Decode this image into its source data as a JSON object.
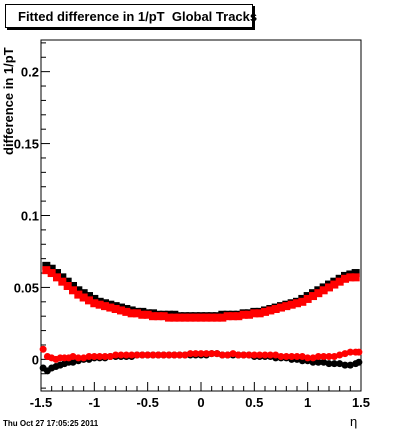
{
  "chart_data": {
    "type": "scatter",
    "title": "Fitted difference in 1/pT  Global Tracks",
    "xlabel": "η",
    "ylabel": "difference in 1/pT",
    "xlim": [
      -1.5,
      1.5
    ],
    "ylim": [
      -0.022,
      0.222
    ],
    "x_ticks": [
      "-1.5",
      "-1",
      "-0.5",
      "0",
      "0.5",
      "1",
      "1.5"
    ],
    "y_ticks": [
      "0",
      "0.05",
      "0.1",
      "0.15",
      "0.2"
    ],
    "grid": false,
    "series": [
      {
        "color": "#000000",
        "marker": "square",
        "x": [
          -1.45,
          -1.4,
          -1.35,
          -1.3,
          -1.25,
          -1.2,
          -1.15,
          -1.1,
          -1.05,
          -1.0,
          -0.95,
          -0.9,
          -0.85,
          -0.8,
          -0.75,
          -0.7,
          -0.65,
          -0.6,
          -0.55,
          -0.5,
          -0.45,
          -0.4,
          -0.35,
          -0.3,
          -0.25,
          -0.2,
          -0.15,
          -0.1,
          -0.05,
          0.0,
          0.05,
          0.1,
          0.15,
          0.2,
          0.25,
          0.3,
          0.35,
          0.4,
          0.45,
          0.5,
          0.55,
          0.6,
          0.65,
          0.7,
          0.75,
          0.8,
          0.85,
          0.9,
          0.95,
          1.0,
          1.05,
          1.1,
          1.15,
          1.2,
          1.25,
          1.3,
          1.35,
          1.4,
          1.45
        ],
        "y": [
          0.065,
          0.063,
          0.06,
          0.057,
          0.054,
          0.051,
          0.048,
          0.046,
          0.044,
          0.042,
          0.04,
          0.039,
          0.038,
          0.037,
          0.036,
          0.035,
          0.034,
          0.033,
          0.033,
          0.032,
          0.032,
          0.031,
          0.031,
          0.031,
          0.031,
          0.03,
          0.03,
          0.03,
          0.03,
          0.03,
          0.03,
          0.03,
          0.03,
          0.031,
          0.031,
          0.031,
          0.031,
          0.032,
          0.032,
          0.033,
          0.033,
          0.034,
          0.035,
          0.036,
          0.037,
          0.038,
          0.039,
          0.04,
          0.042,
          0.044,
          0.046,
          0.048,
          0.05,
          0.052,
          0.054,
          0.056,
          0.058,
          0.059,
          0.06
        ]
      },
      {
        "color": "#ff0000",
        "marker": "square",
        "x": [
          -1.45,
          -1.4,
          -1.35,
          -1.3,
          -1.25,
          -1.2,
          -1.15,
          -1.1,
          -1.05,
          -1.0,
          -0.95,
          -0.9,
          -0.85,
          -0.8,
          -0.75,
          -0.7,
          -0.65,
          -0.6,
          -0.55,
          -0.5,
          -0.45,
          -0.4,
          -0.35,
          -0.3,
          -0.25,
          -0.2,
          -0.15,
          -0.1,
          -0.05,
          0.0,
          0.05,
          0.1,
          0.15,
          0.2,
          0.25,
          0.3,
          0.35,
          0.4,
          0.45,
          0.5,
          0.55,
          0.6,
          0.65,
          0.7,
          0.75,
          0.8,
          0.85,
          0.9,
          0.95,
          1.0,
          1.05,
          1.1,
          1.15,
          1.2,
          1.25,
          1.3,
          1.35,
          1.4,
          1.45
        ],
        "y": [
          0.062,
          0.06,
          0.057,
          0.054,
          0.051,
          0.048,
          0.045,
          0.043,
          0.041,
          0.039,
          0.038,
          0.037,
          0.036,
          0.035,
          0.034,
          0.033,
          0.032,
          0.032,
          0.031,
          0.031,
          0.03,
          0.03,
          0.03,
          0.029,
          0.029,
          0.029,
          0.029,
          0.029,
          0.029,
          0.029,
          0.029,
          0.029,
          0.029,
          0.029,
          0.03,
          0.03,
          0.03,
          0.031,
          0.031,
          0.032,
          0.032,
          0.033,
          0.034,
          0.035,
          0.036,
          0.037,
          0.038,
          0.039,
          0.04,
          0.042,
          0.044,
          0.046,
          0.048,
          0.05,
          0.052,
          0.054,
          0.056,
          0.057,
          0.057
        ]
      },
      {
        "color": "#000000",
        "marker": "circle",
        "x": [
          -1.48,
          -1.44,
          -1.4,
          -1.36,
          -1.32,
          -1.28,
          -1.24,
          -1.2,
          -1.15,
          -1.1,
          -1.05,
          -1.0,
          -0.95,
          -0.9,
          -0.85,
          -0.8,
          -0.75,
          -0.7,
          -0.65,
          -0.6,
          -0.55,
          -0.5,
          -0.45,
          -0.4,
          -0.35,
          -0.3,
          -0.25,
          -0.2,
          -0.15,
          -0.1,
          -0.05,
          0.0,
          0.05,
          0.1,
          0.15,
          0.2,
          0.25,
          0.3,
          0.35,
          0.4,
          0.45,
          0.5,
          0.55,
          0.6,
          0.65,
          0.7,
          0.75,
          0.8,
          0.85,
          0.9,
          0.95,
          1.0,
          1.05,
          1.1,
          1.15,
          1.2,
          1.25,
          1.3,
          1.35,
          1.4,
          1.45,
          1.48
        ],
        "y": [
          -0.006,
          -0.008,
          -0.006,
          -0.005,
          -0.004,
          -0.003,
          -0.002,
          -0.002,
          -0.001,
          0.0,
          0.0,
          0.001,
          0.001,
          0.001,
          0.002,
          0.002,
          0.002,
          0.002,
          0.002,
          0.003,
          0.003,
          0.003,
          0.003,
          0.003,
          0.003,
          0.003,
          0.003,
          0.003,
          0.003,
          0.003,
          0.003,
          0.003,
          0.003,
          0.004,
          0.004,
          0.003,
          0.003,
          0.003,
          0.003,
          0.003,
          0.003,
          0.002,
          0.002,
          0.002,
          0.002,
          0.001,
          0.001,
          0.001,
          0.0,
          0.0,
          -0.001,
          -0.001,
          -0.002,
          -0.002,
          -0.002,
          -0.003,
          -0.003,
          -0.003,
          -0.004,
          -0.004,
          -0.003,
          -0.002
        ]
      },
      {
        "color": "#ff0000",
        "marker": "circle",
        "x": [
          -1.48,
          -1.44,
          -1.4,
          -1.36,
          -1.32,
          -1.28,
          -1.24,
          -1.2,
          -1.15,
          -1.1,
          -1.05,
          -1.0,
          -0.95,
          -0.9,
          -0.85,
          -0.8,
          -0.75,
          -0.7,
          -0.65,
          -0.6,
          -0.55,
          -0.5,
          -0.45,
          -0.4,
          -0.35,
          -0.3,
          -0.25,
          -0.2,
          -0.15,
          -0.1,
          -0.05,
          0.0,
          0.05,
          0.1,
          0.15,
          0.2,
          0.25,
          0.3,
          0.35,
          0.4,
          0.45,
          0.5,
          0.55,
          0.6,
          0.65,
          0.7,
          0.75,
          0.8,
          0.85,
          0.9,
          0.95,
          1.0,
          1.05,
          1.1,
          1.15,
          1.2,
          1.25,
          1.3,
          1.35,
          1.4,
          1.45,
          1.48
        ],
        "y": [
          0.007,
          0.002,
          0.001,
          0.0,
          0.001,
          0.001,
          0.001,
          0.002,
          0.001,
          0.001,
          0.002,
          0.002,
          0.002,
          0.002,
          0.002,
          0.003,
          0.003,
          0.003,
          0.003,
          0.003,
          0.003,
          0.003,
          0.003,
          0.003,
          0.003,
          0.003,
          0.003,
          0.003,
          0.003,
          0.004,
          0.004,
          0.004,
          0.004,
          0.004,
          0.004,
          0.003,
          0.003,
          0.004,
          0.003,
          0.003,
          0.003,
          0.003,
          0.003,
          0.003,
          0.003,
          0.003,
          0.002,
          0.002,
          0.002,
          0.002,
          0.002,
          0.001,
          0.001,
          0.002,
          0.002,
          0.002,
          0.002,
          0.003,
          0.004,
          0.005,
          0.005,
          0.005
        ]
      }
    ]
  },
  "footer": {
    "timestamp": "Thu Oct 27 17:05:25 2011"
  }
}
